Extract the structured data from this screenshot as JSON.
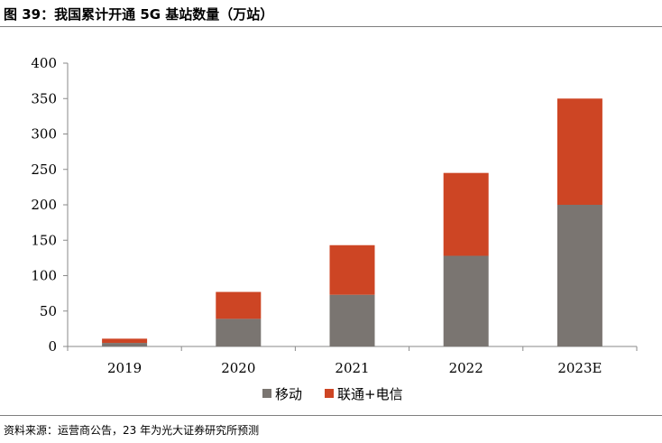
{
  "title": "图 39：我国累计开通 5G 基站数量（万站）",
  "source": "资料来源：运营商公告，23 年为光大证券研究所预测",
  "chart_data": {
    "type": "bar",
    "stacked": true,
    "categories": [
      "2019",
      "2020",
      "2021",
      "2022",
      "2023E"
    ],
    "series": [
      {
        "name": "移动",
        "color": "#7a7571",
        "values": [
          5,
          39,
          73,
          128,
          200
        ]
      },
      {
        "name": "联通+电信",
        "color": "#cd4524",
        "values": [
          6,
          38,
          70,
          117,
          150
        ]
      }
    ],
    "ylim": [
      0,
      400
    ],
    "yticks": [
      0,
      50,
      100,
      150,
      200,
      250,
      300,
      350,
      400
    ],
    "grid": false,
    "legend": "bottom"
  }
}
